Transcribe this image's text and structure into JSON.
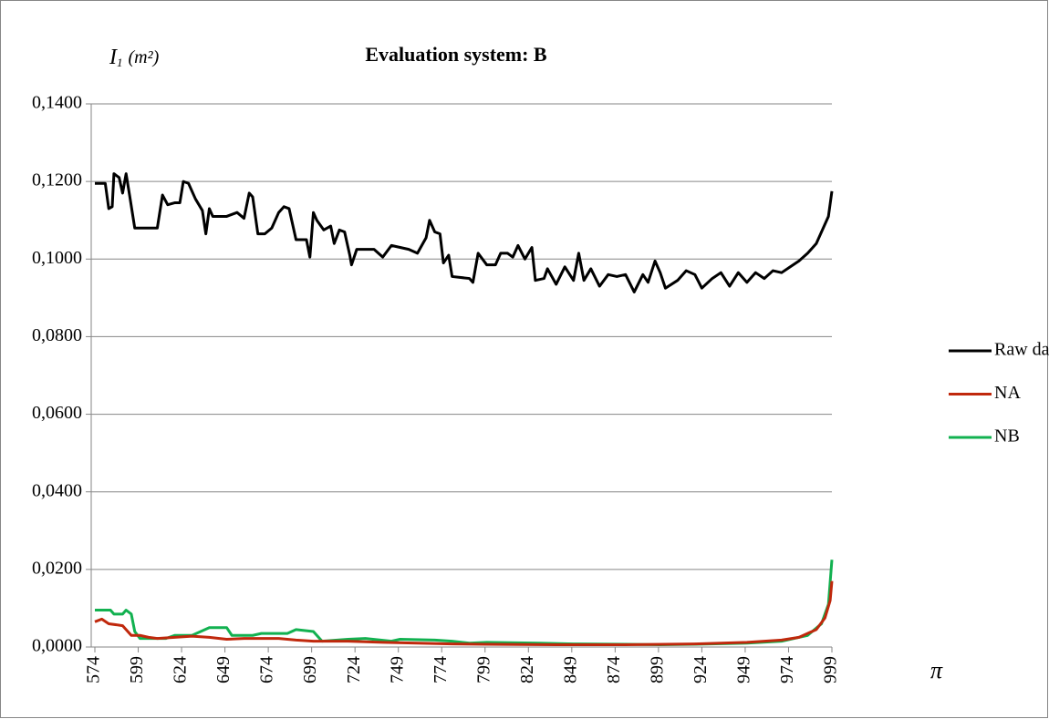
{
  "chart_data": {
    "type": "line",
    "title": "Evaluation system: B",
    "y_label": {
      "symbol": "I",
      "subscript": "1",
      "unit": "(m²)"
    },
    "x_label": "π",
    "xlim": [
      574,
      999
    ],
    "xticks": [
      574,
      599,
      624,
      649,
      674,
      699,
      724,
      749,
      774,
      799,
      824,
      849,
      874,
      899,
      924,
      949,
      974,
      999
    ],
    "ylim": [
      0,
      0.14
    ],
    "yticks": [
      {
        "value": 0,
        "label": "0,0000"
      },
      {
        "value": 0.02,
        "label": "0,0200"
      },
      {
        "value": 0.04,
        "label": "0,0400"
      },
      {
        "value": 0.06,
        "label": "0,0600"
      },
      {
        "value": 0.08,
        "label": "0,0800"
      },
      {
        "value": 0.1,
        "label": "0,1000"
      },
      {
        "value": 0.12,
        "label": "0,1200"
      },
      {
        "value": 0.14,
        "label": "0,1400"
      }
    ],
    "grid": true,
    "legend": "right",
    "series": [
      {
        "name": "Raw data",
        "color": "#000000",
        "x": [
          574,
          580,
          582,
          584,
          585,
          588,
          590,
          592,
          594,
          597,
          600,
          610,
          613,
          616,
          620,
          623,
          625,
          628,
          632,
          636,
          638,
          640,
          642,
          650,
          656,
          660,
          663,
          665,
          668,
          672,
          676,
          680,
          683,
          686,
          690,
          696,
          698,
          700,
          702,
          706,
          710,
          712,
          715,
          718,
          721,
          722,
          725,
          730,
          735,
          740,
          745,
          750,
          755,
          760,
          765,
          767,
          770,
          773,
          775,
          778,
          780,
          790,
          792,
          795,
          800,
          805,
          808,
          812,
          815,
          818,
          822,
          826,
          828,
          833,
          835,
          840,
          845,
          850,
          853,
          856,
          860,
          865,
          870,
          875,
          880,
          885,
          890,
          893,
          897,
          900,
          903,
          910,
          915,
          920,
          924,
          930,
          935,
          940,
          945,
          950,
          955,
          960,
          965,
          970,
          975,
          980,
          985,
          990,
          994,
          997,
          999
        ],
        "values": [
          0.1195,
          0.1195,
          0.113,
          0.1135,
          0.122,
          0.121,
          0.117,
          0.122,
          0.1165,
          0.108,
          0.108,
          0.108,
          0.1165,
          0.114,
          0.1145,
          0.1145,
          0.12,
          0.1195,
          0.1155,
          0.1125,
          0.1065,
          0.113,
          0.111,
          0.111,
          0.112,
          0.1105,
          0.117,
          0.116,
          0.1065,
          0.1065,
          0.108,
          0.112,
          0.1135,
          0.113,
          0.105,
          0.105,
          0.1005,
          0.112,
          0.11,
          0.1075,
          0.1085,
          0.104,
          0.1075,
          0.107,
          0.101,
          0.0985,
          0.1025,
          0.1025,
          0.1025,
          0.1005,
          0.1035,
          0.103,
          0.1025,
          0.1015,
          0.1055,
          0.11,
          0.107,
          0.1065,
          0.099,
          0.101,
          0.0955,
          0.095,
          0.094,
          0.1015,
          0.0985,
          0.0985,
          0.1015,
          0.1015,
          0.1005,
          0.1035,
          0.1,
          0.103,
          0.0945,
          0.095,
          0.0975,
          0.0935,
          0.098,
          0.0945,
          0.1015,
          0.0945,
          0.0975,
          0.093,
          0.096,
          0.0955,
          0.096,
          0.0915,
          0.096,
          0.094,
          0.0995,
          0.0965,
          0.0925,
          0.0945,
          0.097,
          0.096,
          0.0925,
          0.095,
          0.0965,
          0.093,
          0.0965,
          0.094,
          0.0965,
          0.095,
          0.097,
          0.0965,
          0.098,
          0.0995,
          0.1015,
          0.104,
          0.108,
          0.111,
          0.1175
        ]
      },
      {
        "name": "NA",
        "color": "#c0280c",
        "x": [
          574,
          578,
          582,
          590,
          595,
          600,
          605,
          610,
          620,
          630,
          640,
          650,
          660,
          680,
          690,
          700,
          720,
          740,
          760,
          780,
          800,
          840,
          880,
          920,
          950,
          970,
          980,
          990,
          995,
          998,
          999
        ],
        "values": [
          0.0065,
          0.0072,
          0.006,
          0.0055,
          0.003,
          0.003,
          0.0025,
          0.0022,
          0.0025,
          0.0028,
          0.0025,
          0.002,
          0.0022,
          0.0022,
          0.0018,
          0.0015,
          0.0015,
          0.0012,
          0.001,
          0.0008,
          0.0007,
          0.0006,
          0.0006,
          0.0008,
          0.0012,
          0.0018,
          0.0025,
          0.0045,
          0.0075,
          0.012,
          0.017
        ]
      },
      {
        "name": "NB",
        "color": "#12b150",
        "x": [
          574,
          583,
          585,
          590,
          592,
          595,
          597,
          600,
          615,
          620,
          630,
          635,
          640,
          650,
          653,
          665,
          670,
          685,
          690,
          700,
          705,
          720,
          730,
          745,
          750,
          770,
          780,
          790,
          800,
          830,
          850,
          880,
          900,
          920,
          950,
          970,
          985,
          993,
          997,
          999
        ],
        "values": [
          0.0095,
          0.0095,
          0.0085,
          0.0085,
          0.0095,
          0.0085,
          0.004,
          0.0022,
          0.0022,
          0.003,
          0.003,
          0.004,
          0.005,
          0.005,
          0.003,
          0.003,
          0.0035,
          0.0035,
          0.0045,
          0.004,
          0.0015,
          0.002,
          0.0022,
          0.0015,
          0.002,
          0.0018,
          0.0015,
          0.001,
          0.0012,
          0.001,
          0.0008,
          0.0007,
          0.0006,
          0.0007,
          0.001,
          0.0015,
          0.003,
          0.006,
          0.011,
          0.0225
        ]
      }
    ]
  }
}
